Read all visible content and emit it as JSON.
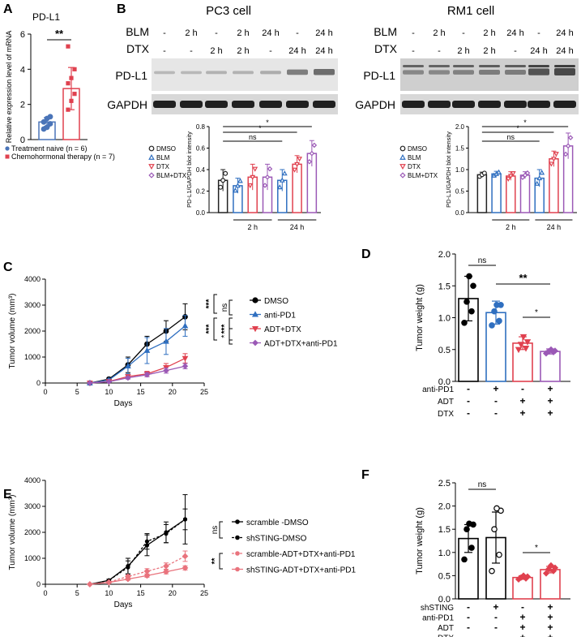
{
  "panel_letters": [
    "A",
    "B",
    "C",
    "D",
    "E",
    "F"
  ],
  "chart_data": [
    {
      "id": "A",
      "type": "bar",
      "title": "PD-L1",
      "ylabel": "Relative expression level of mRNA",
      "ylim": [
        0,
        6
      ],
      "yticks": [
        0,
        2,
        4,
        6
      ],
      "categories": [
        "Treatment naive",
        "Chemohormonal therapy"
      ],
      "values": [
        1.0,
        2.9
      ],
      "errors": [
        0.25,
        1.2
      ],
      "colors": [
        "#4a74b8",
        "#e0414f"
      ],
      "points": [
        [
          0.6,
          0.7,
          0.9,
          1.0,
          1.2,
          1.3
        ],
        [
          1.7,
          2.2,
          2.6,
          3.2,
          3.5,
          4.0,
          5.3
        ]
      ],
      "significance": "**",
      "legend": [
        "Treatment naive (n = 6)",
        "Chemohormonal therapy (n = 7)"
      ]
    },
    {
      "id": "B1",
      "type": "bar",
      "title": "PC3 cell",
      "blot": {
        "row_labels": [
          "BLM",
          "DTX"
        ],
        "blm": [
          "-",
          "2 h",
          "-",
          "2 h",
          "24 h",
          "-",
          "24 h"
        ],
        "dtx": [
          "-",
          "-",
          "2 h",
          "2 h",
          "-",
          "24 h",
          "24 h"
        ],
        "bands": [
          "PD-L1",
          "GAPDH"
        ]
      },
      "ylabel": "PD-L1/GAPDH blot intensity",
      "ylim": [
        0,
        0.8
      ],
      "yticks": [
        "0.0",
        "0.2",
        "0.4",
        "0.6",
        "0.8"
      ],
      "legend": [
        "DMSO",
        "BLM",
        "DTX",
        "BLM+DTX"
      ],
      "colors": [
        "#222222",
        "#2f6fc0",
        "#e0414f",
        "#9b59b6"
      ],
      "values": [
        0.3,
        0.25,
        0.33,
        0.33,
        0.3,
        0.45,
        0.55
      ],
      "errors": [
        0.1,
        0.07,
        0.12,
        0.12,
        0.1,
        0.08,
        0.12
      ],
      "series_index": [
        0,
        1,
        2,
        3,
        1,
        2,
        3
      ],
      "group_labels": [
        "2 h",
        "24 h"
      ],
      "significance": [
        "*",
        "*",
        "ns"
      ]
    },
    {
      "id": "B2",
      "type": "bar",
      "title": "RM1 cell",
      "blot": {
        "row_labels": [
          "BLM",
          "DTX"
        ],
        "blm": [
          "-",
          "2 h",
          "-",
          "2 h",
          "24 h",
          "-",
          "24 h"
        ],
        "dtx": [
          "-",
          "-",
          "2 h",
          "2 h",
          "-",
          "24 h",
          "24 h"
        ],
        "bands": [
          "PD-L1",
          "GAPDH"
        ]
      },
      "ylabel": "PD-L1/GAPDH blot intensity",
      "ylim": [
        0,
        2.0
      ],
      "yticks": [
        "0.0",
        "0.5",
        "1.0",
        "1.5",
        "2.0"
      ],
      "legend": [
        "DMSO",
        "BLM",
        "DTX",
        "BLM+DTX"
      ],
      "colors": [
        "#222222",
        "#2f6fc0",
        "#e0414f",
        "#9b59b6"
      ],
      "values": [
        0.88,
        0.9,
        0.85,
        0.87,
        0.8,
        1.25,
        1.55
      ],
      "errors": [
        0.06,
        0.06,
        0.1,
        0.08,
        0.2,
        0.18,
        0.3
      ],
      "series_index": [
        0,
        1,
        2,
        3,
        1,
        2,
        3
      ],
      "group_labels": [
        "2 h",
        "24 h"
      ],
      "significance": [
        "*",
        "*",
        "ns"
      ]
    },
    {
      "id": "C",
      "type": "line",
      "xlabel": "Days",
      "ylabel": "Tumor volume (mm³)",
      "xlim": [
        0,
        25
      ],
      "ylim": [
        0,
        4000
      ],
      "xticks": [
        0,
        5,
        10,
        15,
        20,
        25
      ],
      "yticks": [
        0,
        1000,
        2000,
        3000,
        4000
      ],
      "x": [
        7,
        10,
        13,
        16,
        19,
        22
      ],
      "series": [
        {
          "name": "DMSO",
          "color": "#000000",
          "marker": "circle",
          "values": [
            0,
            150,
            700,
            1500,
            2000,
            2550
          ],
          "errors": [
            0,
            40,
            300,
            300,
            400,
            500
          ]
        },
        {
          "name": "anti-PD1",
          "color": "#2f6fc0",
          "marker": "triangle",
          "values": [
            0,
            120,
            650,
            1250,
            1600,
            2200
          ],
          "errors": [
            0,
            40,
            300,
            500,
            500,
            400
          ]
        },
        {
          "name": "ADT+DTX",
          "color": "#e0414f",
          "marker": "triangle-down",
          "values": [
            0,
            60,
            250,
            350,
            600,
            950
          ],
          "errors": [
            0,
            20,
            60,
            100,
            150,
            180
          ]
        },
        {
          "name": "ADT+DTX+anti-PD1",
          "color": "#9b59b6",
          "marker": "diamond",
          "values": [
            0,
            50,
            200,
            320,
            480,
            650
          ],
          "errors": [
            0,
            20,
            50,
            80,
            100,
            100
          ]
        }
      ],
      "significance": [
        "ns",
        "***",
        "***",
        "***",
        "*"
      ]
    },
    {
      "id": "D",
      "type": "bar",
      "ylabel": "Tumor weight (g)",
      "ylim": [
        0,
        2.0
      ],
      "yticks": [
        "0.0",
        "0.5",
        "1.0",
        "1.5",
        "2.0"
      ],
      "values": [
        1.3,
        1.08,
        0.6,
        0.47
      ],
      "errors": [
        0.35,
        0.18,
        0.1,
        0.04
      ],
      "colors": [
        "#000000",
        "#2f6fc0",
        "#e0414f",
        "#9b59b6"
      ],
      "points": [
        [
          0.92,
          1.1,
          1.25,
          1.5,
          1.65
        ],
        [
          0.88,
          0.95,
          1.1,
          1.2,
          1.2
        ],
        [
          0.5,
          0.52,
          0.58,
          0.62,
          0.7
        ],
        [
          0.44,
          0.46,
          0.47,
          0.48,
          0.5
        ]
      ],
      "treatment_rows": [
        {
          "label": "anti-PD1",
          "marks": [
            "-",
            "+",
            "-",
            "+"
          ]
        },
        {
          "label": "ADT",
          "marks": [
            "-",
            "-",
            "+",
            "+"
          ]
        },
        {
          "label": "DTX",
          "marks": [
            "-",
            "-",
            "+",
            "+"
          ]
        }
      ],
      "significance": [
        "ns",
        "**",
        "*"
      ]
    },
    {
      "id": "E",
      "type": "line",
      "xlabel": "Days",
      "ylabel": "Tumor volume (mm³)",
      "xlim": [
        0,
        25
      ],
      "ylim": [
        0,
        4000
      ],
      "xticks": [
        0,
        5,
        10,
        15,
        20,
        25
      ],
      "yticks": [
        0,
        1000,
        2000,
        3000,
        4000
      ],
      "x": [
        7,
        10,
        13,
        16,
        19,
        22
      ],
      "series": [
        {
          "name": "scramble -DMSO",
          "color": "#000000",
          "dashed": false,
          "values": [
            0,
            150,
            700,
            1500,
            2000,
            2500
          ],
          "errors": [
            0,
            40,
            300,
            400,
            400,
            950
          ]
        },
        {
          "name": "shSTING-DMSO",
          "color": "#000000",
          "dashed": true,
          "values": [
            0,
            150,
            650,
            1650,
            1950,
            2500
          ],
          "errors": [
            0,
            40,
            250,
            300,
            350,
            400
          ]
        },
        {
          "name": "scramble-ADT+DTX+anti-PD1",
          "color": "#e9737d",
          "dashed": true,
          "values": [
            0,
            80,
            300,
            500,
            700,
            1080
          ],
          "errors": [
            0,
            20,
            60,
            100,
            120,
            200
          ]
        },
        {
          "name": "shSTING-ADT+DTX+anti-PD1",
          "color": "#e9737d",
          "dashed": false,
          "values": [
            0,
            70,
            200,
            330,
            480,
            630
          ],
          "errors": [
            0,
            20,
            40,
            60,
            80,
            80
          ]
        }
      ],
      "significance": [
        "ns",
        "**"
      ]
    },
    {
      "id": "F",
      "type": "bar",
      "ylabel": "Tumor weight (g)",
      "ylim": [
        0,
        2.5
      ],
      "yticks": [
        "0.0",
        "0.5",
        "1.0",
        "1.5",
        "2.0",
        "2.5"
      ],
      "values": [
        1.3,
        1.32,
        0.46,
        0.63
      ],
      "errors": [
        0.3,
        0.55,
        0.04,
        0.07
      ],
      "colors": [
        "#000000",
        "#000000",
        "#e0414f",
        "#e0414f"
      ],
      "points": [
        [
          0.85,
          1.1,
          1.5,
          1.6,
          1.62
        ],
        [
          0.6,
          0.95,
          1.5,
          1.9,
          1.95
        ],
        [
          0.42,
          0.44,
          0.46,
          0.48,
          0.5
        ],
        [
          0.55,
          0.6,
          0.64,
          0.67,
          0.72
        ]
      ],
      "open_markers": [
        false,
        true,
        false,
        false
      ],
      "treatment_rows": [
        {
          "label": "shSTING",
          "marks": [
            "-",
            "+",
            "-",
            "+"
          ]
        },
        {
          "label": "anti-PD1",
          "marks": [
            "-",
            "-",
            "+",
            "+"
          ]
        },
        {
          "label": "ADT",
          "marks": [
            "-",
            "-",
            "+",
            "+"
          ]
        },
        {
          "label": "DTX",
          "marks": [
            "-",
            "-",
            "+",
            "+"
          ]
        }
      ],
      "significance": [
        "ns",
        "*"
      ]
    }
  ]
}
